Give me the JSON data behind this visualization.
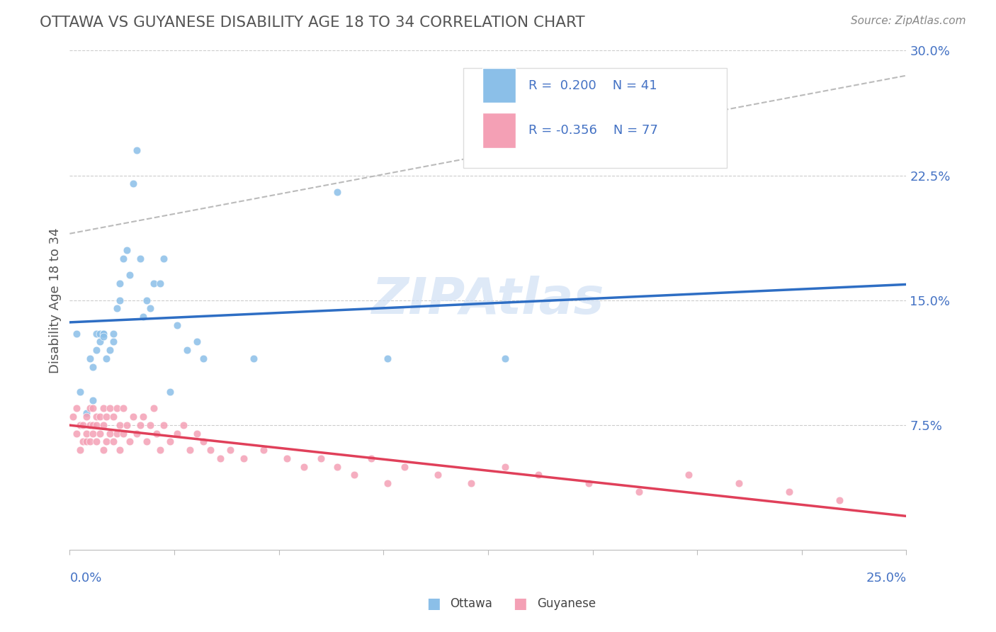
{
  "title": "OTTAWA VS GUYANESE DISABILITY AGE 18 TO 34 CORRELATION CHART",
  "source": "Source: ZipAtlas.com",
  "ylabel": "Disability Age 18 to 34",
  "xlim": [
    0.0,
    0.25
  ],
  "ylim": [
    0.0,
    0.3
  ],
  "ottawa_R": 0.2,
  "ottawa_N": 41,
  "guyanese_R": -0.356,
  "guyanese_N": 77,
  "ottawa_color": "#8bbfe8",
  "guyanese_color": "#f4a0b5",
  "ottawa_line_color": "#2e6ec4",
  "guyanese_line_color": "#e0405a",
  "grid_color": "#cccccc",
  "title_color": "#555555",
  "label_color": "#4472c4",
  "watermark_color": "#d0e0f5",
  "watermark_text": "ZIPAtlas",
  "legend_entry1": "R =  0.200    N = 41",
  "legend_entry2": "R = -0.356    N = 77",
  "bottom_legend": [
    "Ottawa",
    "Guyanese"
  ],
  "ottawa_x": [
    0.002,
    0.003,
    0.005,
    0.006,
    0.007,
    0.007,
    0.008,
    0.008,
    0.009,
    0.009,
    0.01,
    0.01,
    0.01,
    0.011,
    0.012,
    0.013,
    0.013,
    0.014,
    0.015,
    0.015,
    0.016,
    0.017,
    0.018,
    0.019,
    0.02,
    0.021,
    0.022,
    0.023,
    0.024,
    0.025,
    0.027,
    0.028,
    0.03,
    0.032,
    0.035,
    0.038,
    0.04,
    0.055,
    0.08,
    0.095,
    0.13
  ],
  "ottawa_y": [
    0.13,
    0.095,
    0.082,
    0.115,
    0.09,
    0.11,
    0.13,
    0.12,
    0.125,
    0.13,
    0.13,
    0.13,
    0.128,
    0.115,
    0.12,
    0.125,
    0.13,
    0.145,
    0.16,
    0.15,
    0.175,
    0.18,
    0.165,
    0.22,
    0.24,
    0.175,
    0.14,
    0.15,
    0.145,
    0.16,
    0.16,
    0.175,
    0.095,
    0.135,
    0.12,
    0.125,
    0.115,
    0.115,
    0.215,
    0.115,
    0.115
  ],
  "guyanese_x": [
    0.001,
    0.002,
    0.002,
    0.003,
    0.003,
    0.004,
    0.004,
    0.005,
    0.005,
    0.005,
    0.006,
    0.006,
    0.006,
    0.007,
    0.007,
    0.007,
    0.008,
    0.008,
    0.008,
    0.009,
    0.009,
    0.01,
    0.01,
    0.01,
    0.011,
    0.011,
    0.012,
    0.012,
    0.013,
    0.013,
    0.014,
    0.014,
    0.015,
    0.015,
    0.016,
    0.016,
    0.017,
    0.018,
    0.019,
    0.02,
    0.021,
    0.022,
    0.023,
    0.024,
    0.025,
    0.026,
    0.027,
    0.028,
    0.03,
    0.032,
    0.034,
    0.036,
    0.038,
    0.04,
    0.042,
    0.045,
    0.048,
    0.052,
    0.058,
    0.065,
    0.07,
    0.075,
    0.08,
    0.085,
    0.09,
    0.095,
    0.1,
    0.11,
    0.12,
    0.13,
    0.14,
    0.155,
    0.17,
    0.185,
    0.2,
    0.215,
    0.23
  ],
  "guyanese_y": [
    0.08,
    0.07,
    0.085,
    0.06,
    0.075,
    0.065,
    0.075,
    0.065,
    0.07,
    0.08,
    0.065,
    0.075,
    0.085,
    0.07,
    0.075,
    0.085,
    0.065,
    0.075,
    0.08,
    0.07,
    0.08,
    0.06,
    0.075,
    0.085,
    0.065,
    0.08,
    0.07,
    0.085,
    0.065,
    0.08,
    0.07,
    0.085,
    0.06,
    0.075,
    0.07,
    0.085,
    0.075,
    0.065,
    0.08,
    0.07,
    0.075,
    0.08,
    0.065,
    0.075,
    0.085,
    0.07,
    0.06,
    0.075,
    0.065,
    0.07,
    0.075,
    0.06,
    0.07,
    0.065,
    0.06,
    0.055,
    0.06,
    0.055,
    0.06,
    0.055,
    0.05,
    0.055,
    0.05,
    0.045,
    0.055,
    0.04,
    0.05,
    0.045,
    0.04,
    0.05,
    0.045,
    0.04,
    0.035,
    0.045,
    0.04,
    0.035,
    0.03
  ]
}
